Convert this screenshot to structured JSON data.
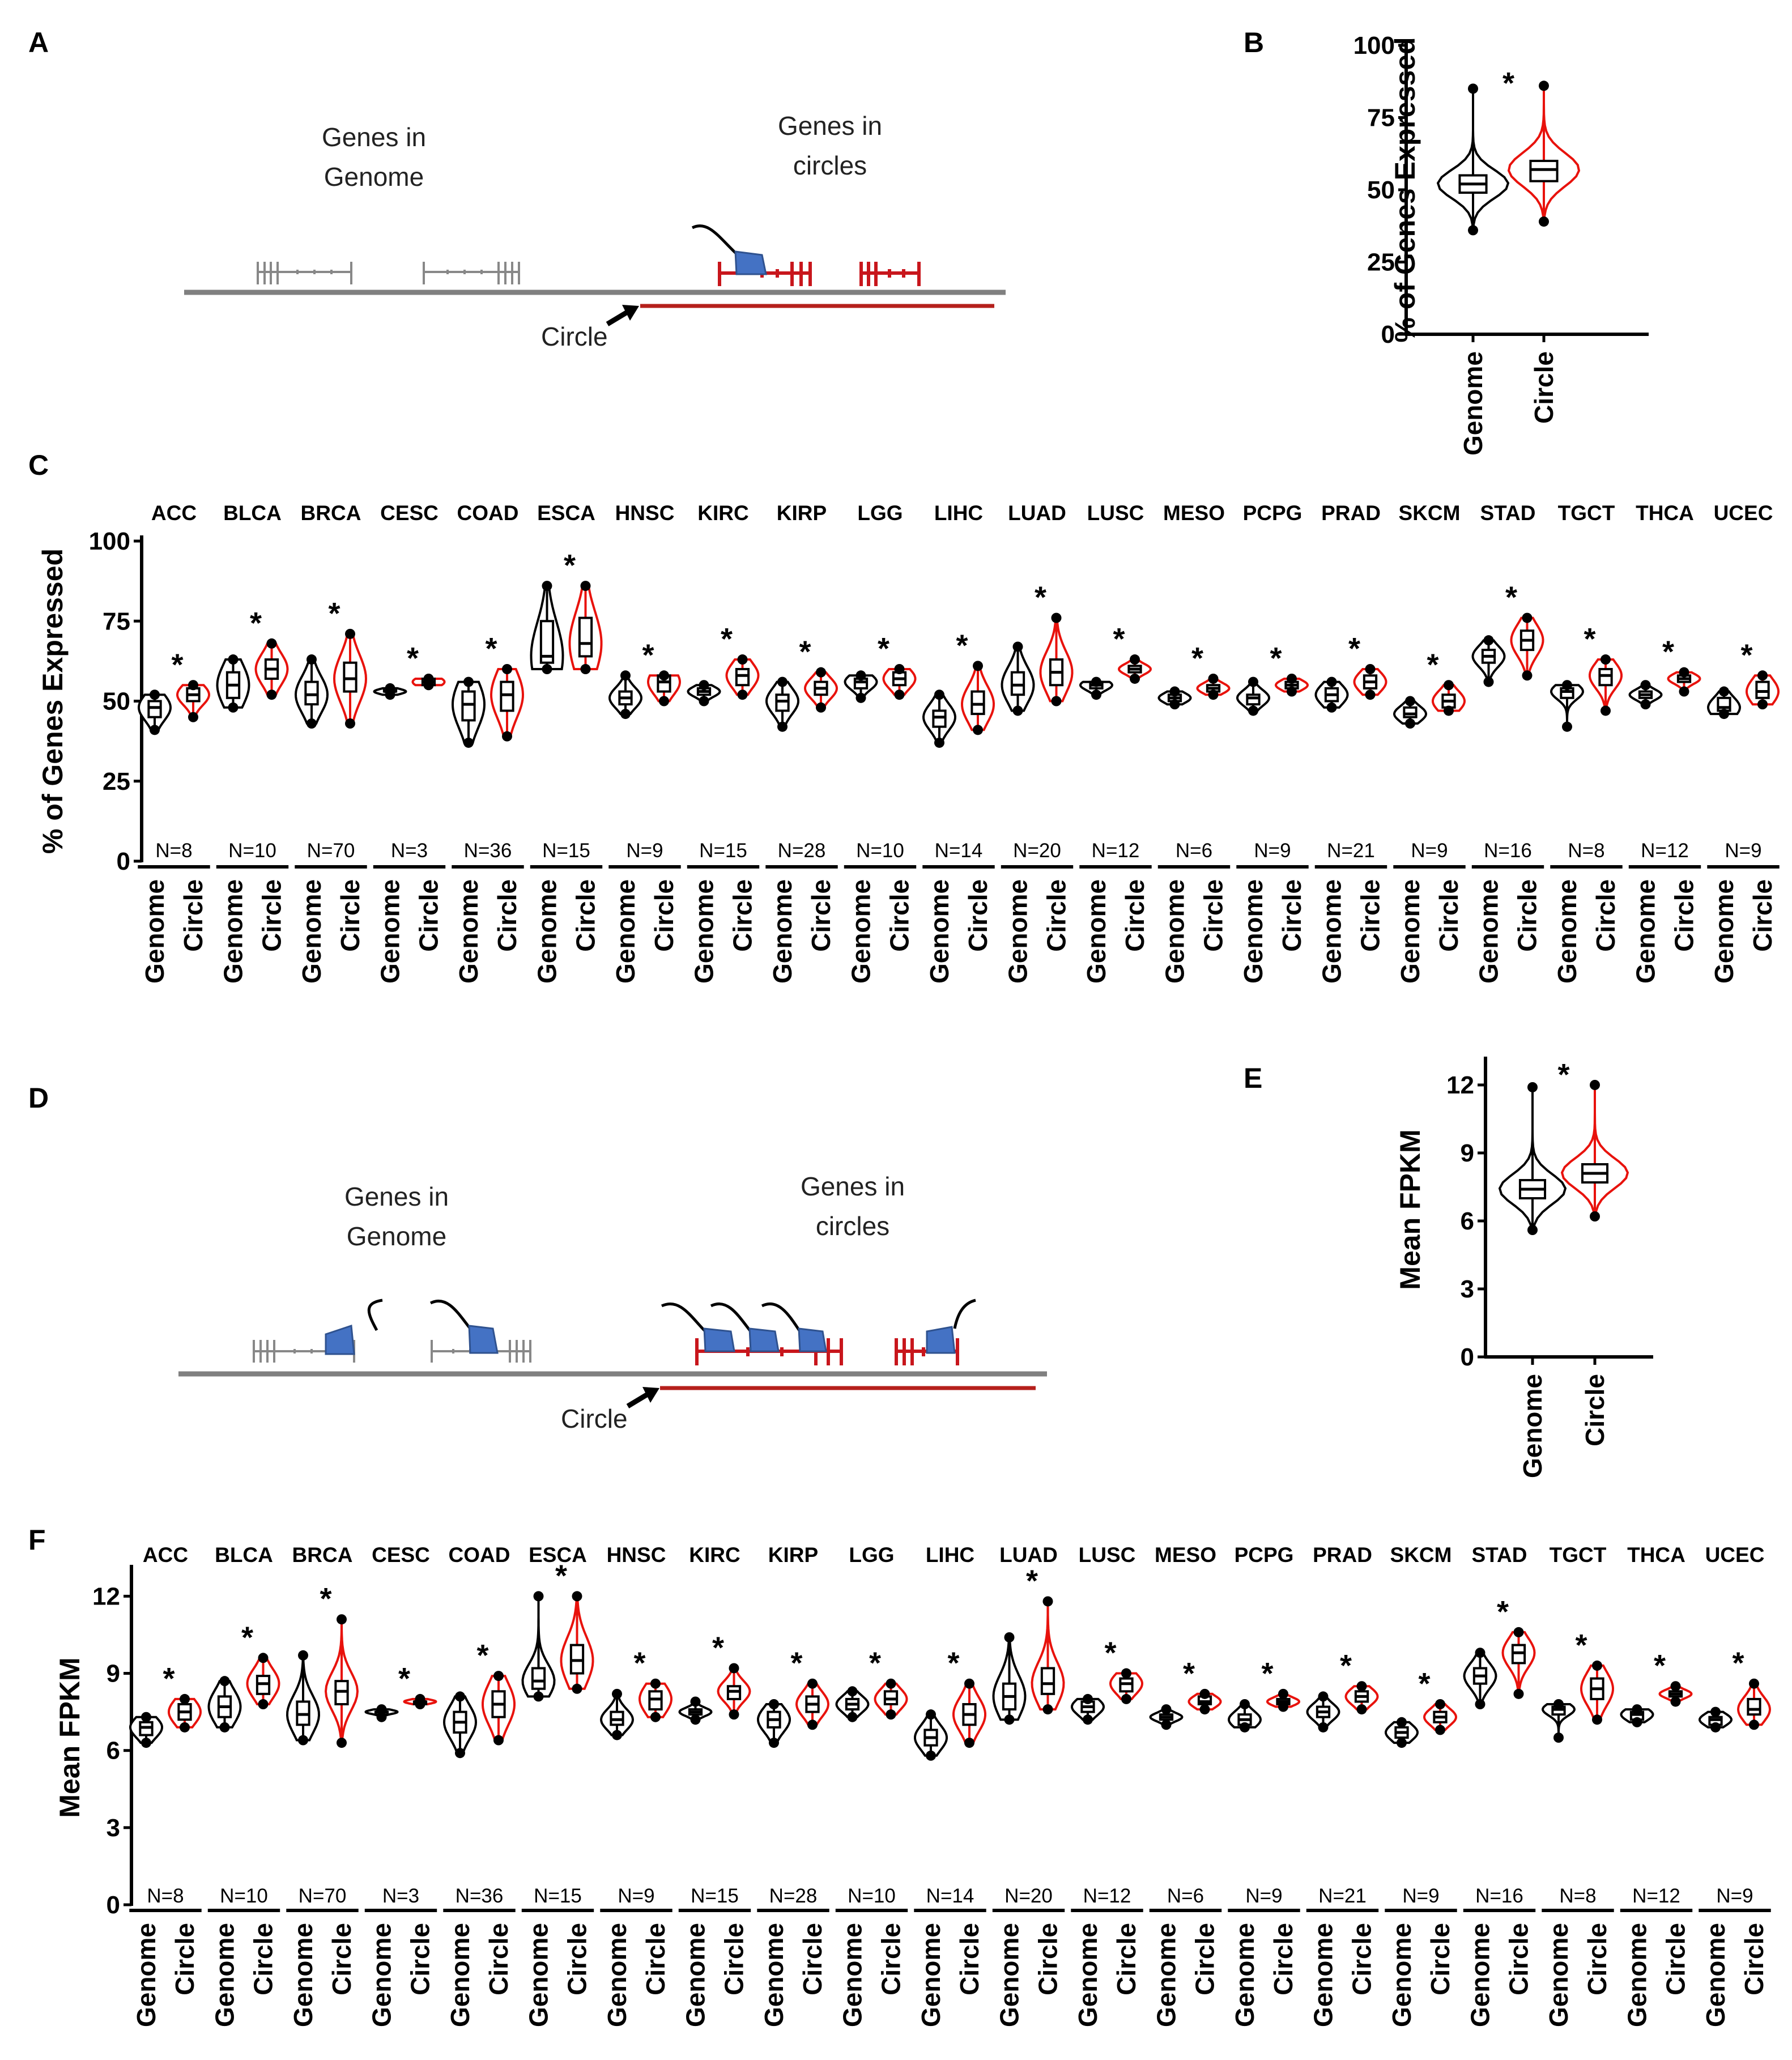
{
  "panel_labels": [
    "A",
    "B",
    "C",
    "D",
    "E",
    "F"
  ],
  "colors": {
    "genome": "#000000",
    "circle": "#e8120c",
    "polymerase": "#4472c4",
    "chromosome": "#808080",
    "circle_line": "#b5201c"
  },
  "diagram_A": {
    "genome_label": [
      "Genes in",
      "Genome"
    ],
    "circle_genes_label": [
      "Genes in",
      "circles"
    ],
    "circle_label": "Circle"
  },
  "diagram_D": {
    "genome_label": [
      "Genes in",
      "Genome"
    ],
    "circle_genes_label": [
      "Genes in",
      "circles"
    ],
    "circle_label": "Circle"
  },
  "chart_data": [
    {
      "panel": "B",
      "type": "violin",
      "ylabel": "% of Genes Expressed",
      "ylim": [
        0,
        100
      ],
      "yticks": [
        "0",
        "25",
        "50",
        "75",
        "100"
      ],
      "groups": [
        "Genome",
        "Circle"
      ],
      "series": [
        {
          "name": "Genome",
          "median": 52,
          "q1": 49,
          "q3": 55,
          "whisker_low": 40,
          "whisker_high": 64,
          "min": 36,
          "max": 85
        },
        {
          "name": "Circle",
          "median": 57,
          "q1": 53,
          "q3": 60,
          "whisker_low": 44,
          "whisker_high": 70,
          "min": 39,
          "max": 86
        }
      ],
      "significance": "*"
    },
    {
      "panel": "C",
      "type": "violin",
      "ylabel": "% of Genes Expressed",
      "ylim": [
        0,
        100
      ],
      "yticks": [
        "0",
        "25",
        "50",
        "75",
        "100"
      ],
      "groups": [
        "Genome",
        "Circle"
      ],
      "facets": [
        {
          "name": "ACC",
          "n": "N=8",
          "genome": [
            41,
            45,
            48,
            50,
            52
          ],
          "circle": [
            45,
            50,
            52,
            54,
            55
          ]
        },
        {
          "name": "BLCA",
          "n": "N=10",
          "genome": [
            48,
            51,
            55,
            59,
            63
          ],
          "circle": [
            52,
            57,
            60,
            63,
            68
          ]
        },
        {
          "name": "BRCA",
          "n": "N=70",
          "genome": [
            43,
            49,
            52,
            56,
            63
          ],
          "circle": [
            43,
            53,
            57,
            62,
            71
          ]
        },
        {
          "name": "CESC",
          "n": "N=3",
          "genome": [
            52,
            53,
            53,
            54,
            54
          ],
          "circle": [
            55,
            55,
            56,
            57,
            57
          ]
        },
        {
          "name": "COAD",
          "n": "N=36",
          "genome": [
            37,
            44,
            49,
            53,
            56
          ],
          "circle": [
            39,
            47,
            52,
            56,
            60
          ]
        },
        {
          "name": "ESCA",
          "n": "N=15",
          "genome": [
            60,
            62,
            64,
            75,
            86
          ],
          "circle": [
            60,
            64,
            68,
            76,
            86
          ]
        },
        {
          "name": "HNSC",
          "n": "N=9",
          "genome": [
            46,
            49,
            51,
            53,
            58
          ],
          "circle": [
            50,
            53,
            56,
            58,
            58
          ]
        },
        {
          "name": "KIRC",
          "n": "N=15",
          "genome": [
            50,
            52,
            53,
            54,
            55
          ],
          "circle": [
            52,
            55,
            58,
            60,
            63
          ]
        },
        {
          "name": "KIRP",
          "n": "N=28",
          "genome": [
            42,
            47,
            50,
            52,
            56
          ],
          "circle": [
            48,
            52,
            54,
            56,
            59
          ]
        },
        {
          "name": "LGG",
          "n": "N=10",
          "genome": [
            51,
            54,
            56,
            57,
            58
          ],
          "circle": [
            52,
            55,
            57,
            59,
            60
          ]
        },
        {
          "name": "LIHC",
          "n": "N=14",
          "genome": [
            37,
            42,
            45,
            47,
            52
          ],
          "circle": [
            41,
            46,
            49,
            53,
            61
          ]
        },
        {
          "name": "LUAD",
          "n": "N=20",
          "genome": [
            47,
            52,
            55,
            59,
            67
          ],
          "circle": [
            50,
            55,
            59,
            63,
            76
          ]
        },
        {
          "name": "LUSC",
          "n": "N=12",
          "genome": [
            52,
            54,
            55,
            56,
            56
          ],
          "circle": [
            57,
            59,
            60,
            61,
            63
          ]
        },
        {
          "name": "MESO",
          "n": "N=6",
          "genome": [
            49,
            50,
            51,
            52,
            53
          ],
          "circle": [
            52,
            53,
            54,
            55,
            57
          ]
        },
        {
          "name": "PCPG",
          "n": "N=9",
          "genome": [
            47,
            49,
            51,
            52,
            56
          ],
          "circle": [
            53,
            54,
            55,
            56,
            57
          ]
        },
        {
          "name": "PRAD",
          "n": "N=21",
          "genome": [
            48,
            50,
            52,
            54,
            56
          ],
          "circle": [
            52,
            54,
            56,
            58,
            60
          ]
        },
        {
          "name": "SKCM",
          "n": "N=9",
          "genome": [
            43,
            45,
            46,
            48,
            50
          ],
          "circle": [
            47,
            48,
            50,
            52,
            55
          ]
        },
        {
          "name": "STAD",
          "n": "N=16",
          "genome": [
            56,
            62,
            64,
            66,
            69
          ],
          "circle": [
            58,
            66,
            69,
            72,
            76
          ]
        },
        {
          "name": "TGCT",
          "n": "N=8",
          "genome": [
            42,
            51,
            53,
            54,
            55
          ],
          "circle": [
            47,
            55,
            58,
            60,
            63
          ]
        },
        {
          "name": "THCA",
          "n": "N=12",
          "genome": [
            49,
            51,
            52,
            53,
            55
          ],
          "circle": [
            53,
            56,
            57,
            58,
            59
          ]
        },
        {
          "name": "UCEC",
          "n": "N=9",
          "genome": [
            46,
            47,
            48,
            51,
            53
          ],
          "circle": [
            49,
            51,
            53,
            56,
            58
          ]
        }
      ],
      "significance": "*"
    },
    {
      "panel": "E",
      "type": "violin",
      "ylabel": "Mean FPKM",
      "ylim": [
        0,
        13
      ],
      "yticks": [
        "0",
        "3",
        "6",
        "9",
        "12"
      ],
      "groups": [
        "Genome",
        "Circle"
      ],
      "series": [
        {
          "name": "Genome",
          "median": 7.4,
          "q1": 7.0,
          "q3": 7.8,
          "whisker_low": 6.0,
          "whisker_high": 9.3,
          "min": 5.6,
          "max": 11.9
        },
        {
          "name": "Circle",
          "median": 8.1,
          "q1": 7.7,
          "q3": 8.5,
          "whisker_low": 6.7,
          "whisker_high": 10.0,
          "min": 6.2,
          "max": 12.0
        }
      ],
      "significance": "*"
    },
    {
      "panel": "F",
      "type": "violin",
      "ylabel": "Mean FPKM",
      "ylim": [
        0,
        13
      ],
      "yticks": [
        "0",
        "3",
        "6",
        "9",
        "12"
      ],
      "groups": [
        "Genome",
        "Circle"
      ],
      "facets": [
        {
          "name": "ACC",
          "n": "N=8",
          "genome": [
            6.3,
            6.6,
            6.9,
            7.1,
            7.3
          ],
          "circle": [
            6.9,
            7.2,
            7.5,
            7.8,
            8.0
          ]
        },
        {
          "name": "BLCA",
          "n": "N=10",
          "genome": [
            6.9,
            7.3,
            7.7,
            8.1,
            8.7
          ],
          "circle": [
            7.8,
            8.2,
            8.6,
            8.9,
            9.6
          ]
        },
        {
          "name": "BRCA",
          "n": "N=70",
          "genome": [
            6.4,
            7.0,
            7.4,
            7.9,
            9.7
          ],
          "circle": [
            6.3,
            7.8,
            8.3,
            8.7,
            11.1
          ]
        },
        {
          "name": "CESC",
          "n": "N=3",
          "genome": [
            7.3,
            7.4,
            7.5,
            7.5,
            7.6
          ],
          "circle": [
            7.8,
            7.8,
            7.9,
            7.9,
            8.0
          ]
        },
        {
          "name": "COAD",
          "n": "N=36",
          "genome": [
            5.9,
            6.7,
            7.1,
            7.5,
            8.1
          ],
          "circle": [
            6.4,
            7.3,
            7.8,
            8.3,
            8.9
          ]
        },
        {
          "name": "ESCA",
          "n": "N=15",
          "genome": [
            8.1,
            8.4,
            8.7,
            9.2,
            12.0
          ],
          "circle": [
            8.4,
            9.0,
            9.5,
            10.1,
            12.0
          ]
        },
        {
          "name": "HNSC",
          "n": "N=9",
          "genome": [
            6.6,
            7.0,
            7.2,
            7.5,
            8.2
          ],
          "circle": [
            7.3,
            7.6,
            8.0,
            8.3,
            8.6
          ]
        },
        {
          "name": "KIRC",
          "n": "N=15",
          "genome": [
            7.2,
            7.4,
            7.5,
            7.6,
            7.9
          ],
          "circle": [
            7.4,
            8.0,
            8.3,
            8.5,
            9.2
          ]
        },
        {
          "name": "KIRP",
          "n": "N=28",
          "genome": [
            6.3,
            6.9,
            7.2,
            7.5,
            7.8
          ],
          "circle": [
            7.0,
            7.5,
            7.8,
            8.1,
            8.6
          ]
        },
        {
          "name": "LGG",
          "n": "N=10",
          "genome": [
            7.3,
            7.6,
            7.8,
            8.0,
            8.3
          ],
          "circle": [
            7.4,
            7.8,
            8.0,
            8.3,
            8.6
          ]
        },
        {
          "name": "LIHC",
          "n": "N=14",
          "genome": [
            5.8,
            6.2,
            6.5,
            6.8,
            7.4
          ],
          "circle": [
            6.3,
            7.0,
            7.4,
            7.8,
            8.6
          ]
        },
        {
          "name": "LUAD",
          "n": "N=20",
          "genome": [
            7.2,
            7.6,
            8.1,
            8.6,
            10.4
          ],
          "circle": [
            7.6,
            8.2,
            8.6,
            9.2,
            11.8
          ]
        },
        {
          "name": "LUSC",
          "n": "N=12",
          "genome": [
            7.2,
            7.5,
            7.7,
            7.9,
            8.0
          ],
          "circle": [
            8.0,
            8.3,
            8.6,
            8.8,
            9.0
          ]
        },
        {
          "name": "MESO",
          "n": "N=6",
          "genome": [
            7.0,
            7.2,
            7.3,
            7.4,
            7.6
          ],
          "circle": [
            7.6,
            7.8,
            7.9,
            8.1,
            8.2
          ]
        },
        {
          "name": "PCPG",
          "n": "N=9",
          "genome": [
            6.9,
            7.0,
            7.2,
            7.4,
            7.8
          ],
          "circle": [
            7.7,
            7.8,
            7.9,
            8.0,
            8.2
          ]
        },
        {
          "name": "PRAD",
          "n": "N=21",
          "genome": [
            6.9,
            7.3,
            7.5,
            7.7,
            8.1
          ],
          "circle": [
            7.6,
            7.9,
            8.1,
            8.3,
            8.5
          ]
        },
        {
          "name": "SKCM",
          "n": "N=9",
          "genome": [
            6.3,
            6.5,
            6.7,
            6.9,
            7.1
          ],
          "circle": [
            6.8,
            7.1,
            7.3,
            7.5,
            7.8
          ]
        },
        {
          "name": "STAD",
          "n": "N=16",
          "genome": [
            7.8,
            8.6,
            8.9,
            9.2,
            9.8
          ],
          "circle": [
            8.2,
            9.4,
            9.8,
            10.1,
            10.6
          ]
        },
        {
          "name": "TGCT",
          "n": "N=8",
          "genome": [
            6.5,
            7.4,
            7.6,
            7.7,
            7.8
          ],
          "circle": [
            7.2,
            8.0,
            8.4,
            8.8,
            9.3
          ]
        },
        {
          "name": "THCA",
          "n": "N=12",
          "genome": [
            7.1,
            7.2,
            7.4,
            7.5,
            7.6
          ],
          "circle": [
            7.9,
            8.1,
            8.2,
            8.3,
            8.5
          ]
        },
        {
          "name": "UCEC",
          "n": "N=9",
          "genome": [
            6.9,
            7.0,
            7.2,
            7.3,
            7.5
          ],
          "circle": [
            7.0,
            7.4,
            7.6,
            8.0,
            8.6
          ]
        }
      ],
      "significance": "*"
    }
  ]
}
